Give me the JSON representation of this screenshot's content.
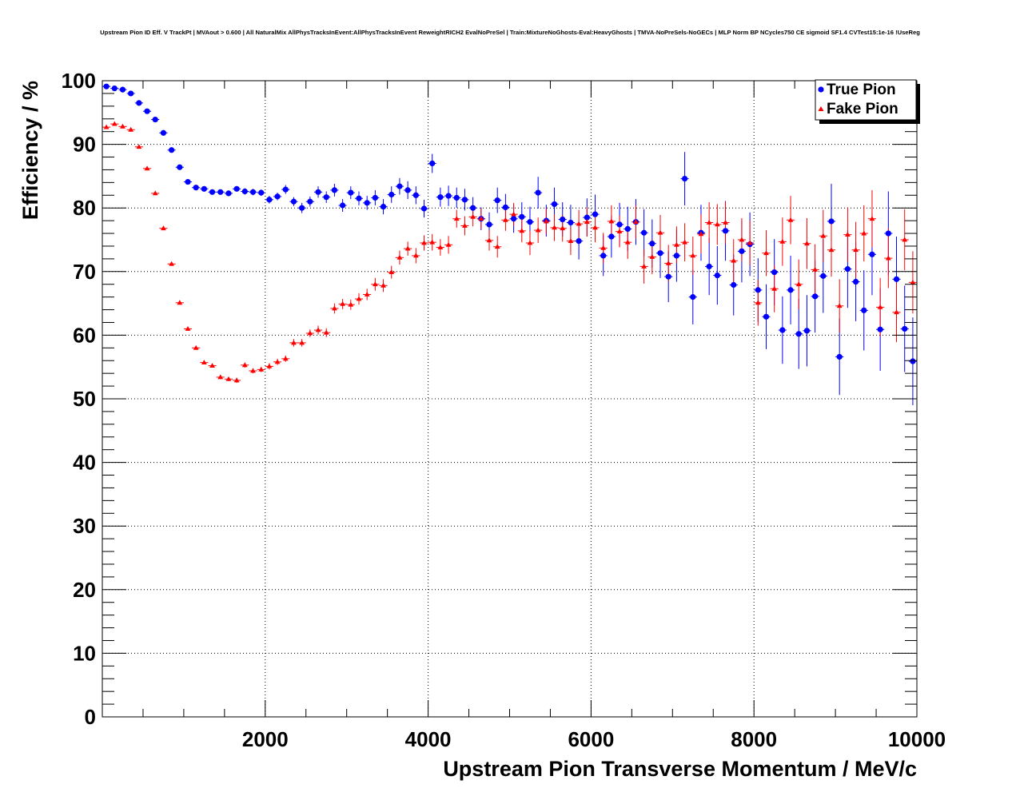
{
  "chart_data": {
    "type": "scatter",
    "title": "Upstream Pion ID Eff. V TrackPt | MVAout > 0.600 | All NaturalMix AllPhysTracksInEvent:AllPhysTracksInEvent ReweightRICH2 EvalNoPreSel | Train:MixtureNoGhosts-Eval:HeavyGhosts | TMVA-NoPreSels-NoGECs | MLP Norm BP NCycles750 CE sigmoid SF1.4 CVTest15:1e-16 !UseReg",
    "xlabel": "Upstream Pion Transverse Momentum / MeV/c",
    "ylabel": "Efficiency / %",
    "xlim": [
      0,
      10000
    ],
    "ylim": [
      0,
      100
    ],
    "xticks": [
      2000,
      4000,
      6000,
      8000,
      10000
    ],
    "xtick_labels": [
      "2000",
      "4000",
      "6000",
      "8000",
      "10000"
    ],
    "yticks": [
      0,
      10,
      20,
      30,
      40,
      50,
      60,
      70,
      80,
      90,
      100
    ],
    "ytick_labels": [
      "0",
      "10",
      "20",
      "30",
      "40",
      "50",
      "60",
      "70",
      "80",
      "90",
      "100"
    ],
    "grid": true,
    "legend_position": "top-right",
    "bin_width": 100,
    "x": [
      50,
      150,
      250,
      350,
      450,
      550,
      650,
      750,
      850,
      950,
      1050,
      1150,
      1250,
      1350,
      1450,
      1550,
      1650,
      1750,
      1850,
      1950,
      2050,
      2150,
      2250,
      2350,
      2450,
      2550,
      2650,
      2750,
      2850,
      2950,
      3050,
      3150,
      3250,
      3350,
      3450,
      3550,
      3650,
      3750,
      3850,
      3950,
      4050,
      4150,
      4250,
      4350,
      4450,
      4550,
      4650,
      4750,
      4850,
      4950,
      5050,
      5150,
      5250,
      5350,
      5450,
      5550,
      5650,
      5750,
      5850,
      5950,
      6050,
      6150,
      6250,
      6350,
      6450,
      6550,
      6650,
      6750,
      6850,
      6950,
      7050,
      7150,
      7250,
      7350,
      7450,
      7550,
      7650,
      7750,
      7850,
      7950,
      8050,
      8150,
      8250,
      8350,
      8450,
      8550,
      8650,
      8750,
      8850,
      8950,
      9050,
      9150,
      9250,
      9350,
      9450,
      9550,
      9650,
      9750,
      9850,
      9950
    ],
    "series": [
      {
        "name": "True Pion",
        "color": "#0000ff",
        "marker": "circle",
        "values": [
          99.1,
          98.8,
          98.6,
          98.0,
          96.5,
          95.2,
          93.9,
          91.8,
          89.1,
          86.4,
          84.1,
          83.2,
          83.0,
          82.5,
          82.5,
          82.3,
          83.0,
          82.6,
          82.5,
          82.4,
          81.3,
          81.8,
          82.9,
          81.0,
          80.0,
          81.0,
          82.5,
          81.7,
          82.8,
          80.4,
          82.4,
          81.5,
          80.8,
          81.6,
          80.2,
          82.1,
          83.4,
          82.8,
          82.0,
          79.9,
          87.0,
          81.7,
          81.9,
          81.6,
          81.3,
          80.0,
          78.3,
          77.4,
          81.2,
          80.1,
          78.3,
          78.6,
          77.8,
          82.4,
          78.0,
          80.6,
          78.2,
          77.7,
          74.8,
          78.5,
          79.0,
          72.5,
          75.5,
          77.4,
          76.7,
          77.8,
          76.1,
          74.4,
          72.9,
          69.2,
          72.5,
          84.6,
          66.0,
          76.1,
          70.8,
          69.4,
          76.4,
          67.9,
          73.2,
          74.3,
          67.1,
          62.9,
          69.9,
          60.8,
          67.1,
          60.2,
          60.7,
          66.1,
          69.3,
          77.9,
          56.6,
          70.4,
          68.4,
          63.9,
          72.7,
          60.9,
          76.0,
          68.8,
          61.0,
          55.9
        ],
        "errors": [
          0.2,
          0.2,
          0.2,
          0.2,
          0.3,
          0.3,
          0.3,
          0.4,
          0.4,
          0.4,
          0.4,
          0.4,
          0.4,
          0.4,
          0.4,
          0.4,
          0.4,
          0.5,
          0.5,
          0.5,
          0.6,
          0.6,
          0.7,
          0.7,
          0.8,
          0.8,
          0.9,
          0.9,
          1.0,
          1.0,
          1.0,
          1.1,
          1.1,
          1.2,
          1.2,
          1.3,
          1.3,
          1.4,
          1.4,
          1.4,
          1.5,
          1.5,
          1.6,
          1.6,
          1.7,
          1.7,
          1.8,
          1.9,
          2.0,
          2.1,
          2.2,
          2.3,
          2.4,
          2.5,
          2.5,
          2.6,
          2.7,
          2.8,
          2.9,
          3.0,
          3.1,
          3.2,
          3.3,
          3.4,
          3.5,
          3.6,
          3.7,
          3.8,
          3.9,
          4.0,
          4.1,
          4.2,
          4.3,
          4.4,
          4.5,
          4.6,
          4.7,
          4.8,
          4.9,
          5.0,
          5.0,
          5.1,
          5.2,
          5.3,
          5.4,
          5.5,
          5.6,
          5.7,
          5.8,
          5.9,
          6.0,
          6.1,
          6.2,
          6.3,
          6.4,
          6.5,
          6.6,
          6.7,
          6.8,
          6.9
        ]
      },
      {
        "name": "Fake Pion",
        "color": "#ff0000",
        "marker": "triangle",
        "values": [
          92.7,
          93.2,
          92.8,
          92.3,
          89.6,
          86.2,
          82.3,
          76.8,
          71.2,
          65.1,
          61.0,
          58.0,
          55.7,
          55.2,
          53.4,
          53.1,
          52.9,
          55.3,
          54.4,
          54.6,
          55.1,
          55.8,
          56.3,
          58.8,
          58.8,
          60.3,
          60.8,
          60.4,
          64.2,
          64.9,
          64.8,
          65.7,
          66.4,
          68.0,
          67.8,
          69.9,
          72.2,
          73.6,
          72.5,
          74.5,
          74.6,
          73.8,
          74.2,
          78.3,
          77.2,
          78.6,
          78.3,
          74.9,
          73.9,
          78.1,
          79.0,
          76.4,
          74.5,
          76.5,
          77.9,
          76.9,
          76.8,
          74.8,
          77.5,
          77.8,
          76.9,
          73.7,
          77.9,
          76.3,
          74.6,
          77.8,
          70.8,
          72.3,
          76.1,
          71.3,
          74.2,
          74.6,
          72.5,
          75.9,
          77.7,
          77.4,
          77.7,
          71.7,
          75.0,
          74.5,
          65.1,
          72.9,
          67.3,
          74.7,
          78.1,
          68.0,
          74.4,
          70.3,
          75.6,
          73.4,
          64.6,
          75.8,
          73.4,
          76.0,
          78.3,
          64.4,
          72.1,
          63.6,
          75.0,
          68.3
        ],
        "errors": [
          0.3,
          0.3,
          0.3,
          0.3,
          0.3,
          0.3,
          0.3,
          0.3,
          0.3,
          0.3,
          0.3,
          0.3,
          0.3,
          0.3,
          0.3,
          0.3,
          0.4,
          0.4,
          0.4,
          0.4,
          0.5,
          0.5,
          0.5,
          0.6,
          0.6,
          0.6,
          0.7,
          0.7,
          0.8,
          0.8,
          0.8,
          0.9,
          0.9,
          1.0,
          1.0,
          1.0,
          1.1,
          1.1,
          1.2,
          1.2,
          1.3,
          1.3,
          1.4,
          1.4,
          1.5,
          1.5,
          1.6,
          1.6,
          1.7,
          1.7,
          1.8,
          1.8,
          1.9,
          2.0,
          2.0,
          2.1,
          2.1,
          2.2,
          2.2,
          2.3,
          2.3,
          2.4,
          2.5,
          2.5,
          2.6,
          2.6,
          2.7,
          2.7,
          2.8,
          2.9,
          2.9,
          3.0,
          3.0,
          3.1,
          3.2,
          3.2,
          3.3,
          3.4,
          3.4,
          3.5,
          3.6,
          3.6,
          3.7,
          3.8,
          3.8,
          3.9,
          4.0,
          4.0,
          4.1,
          4.2,
          4.2,
          4.3,
          4.4,
          4.4,
          4.5,
          4.6,
          4.7,
          4.7,
          4.8,
          4.9
        ]
      }
    ]
  }
}
